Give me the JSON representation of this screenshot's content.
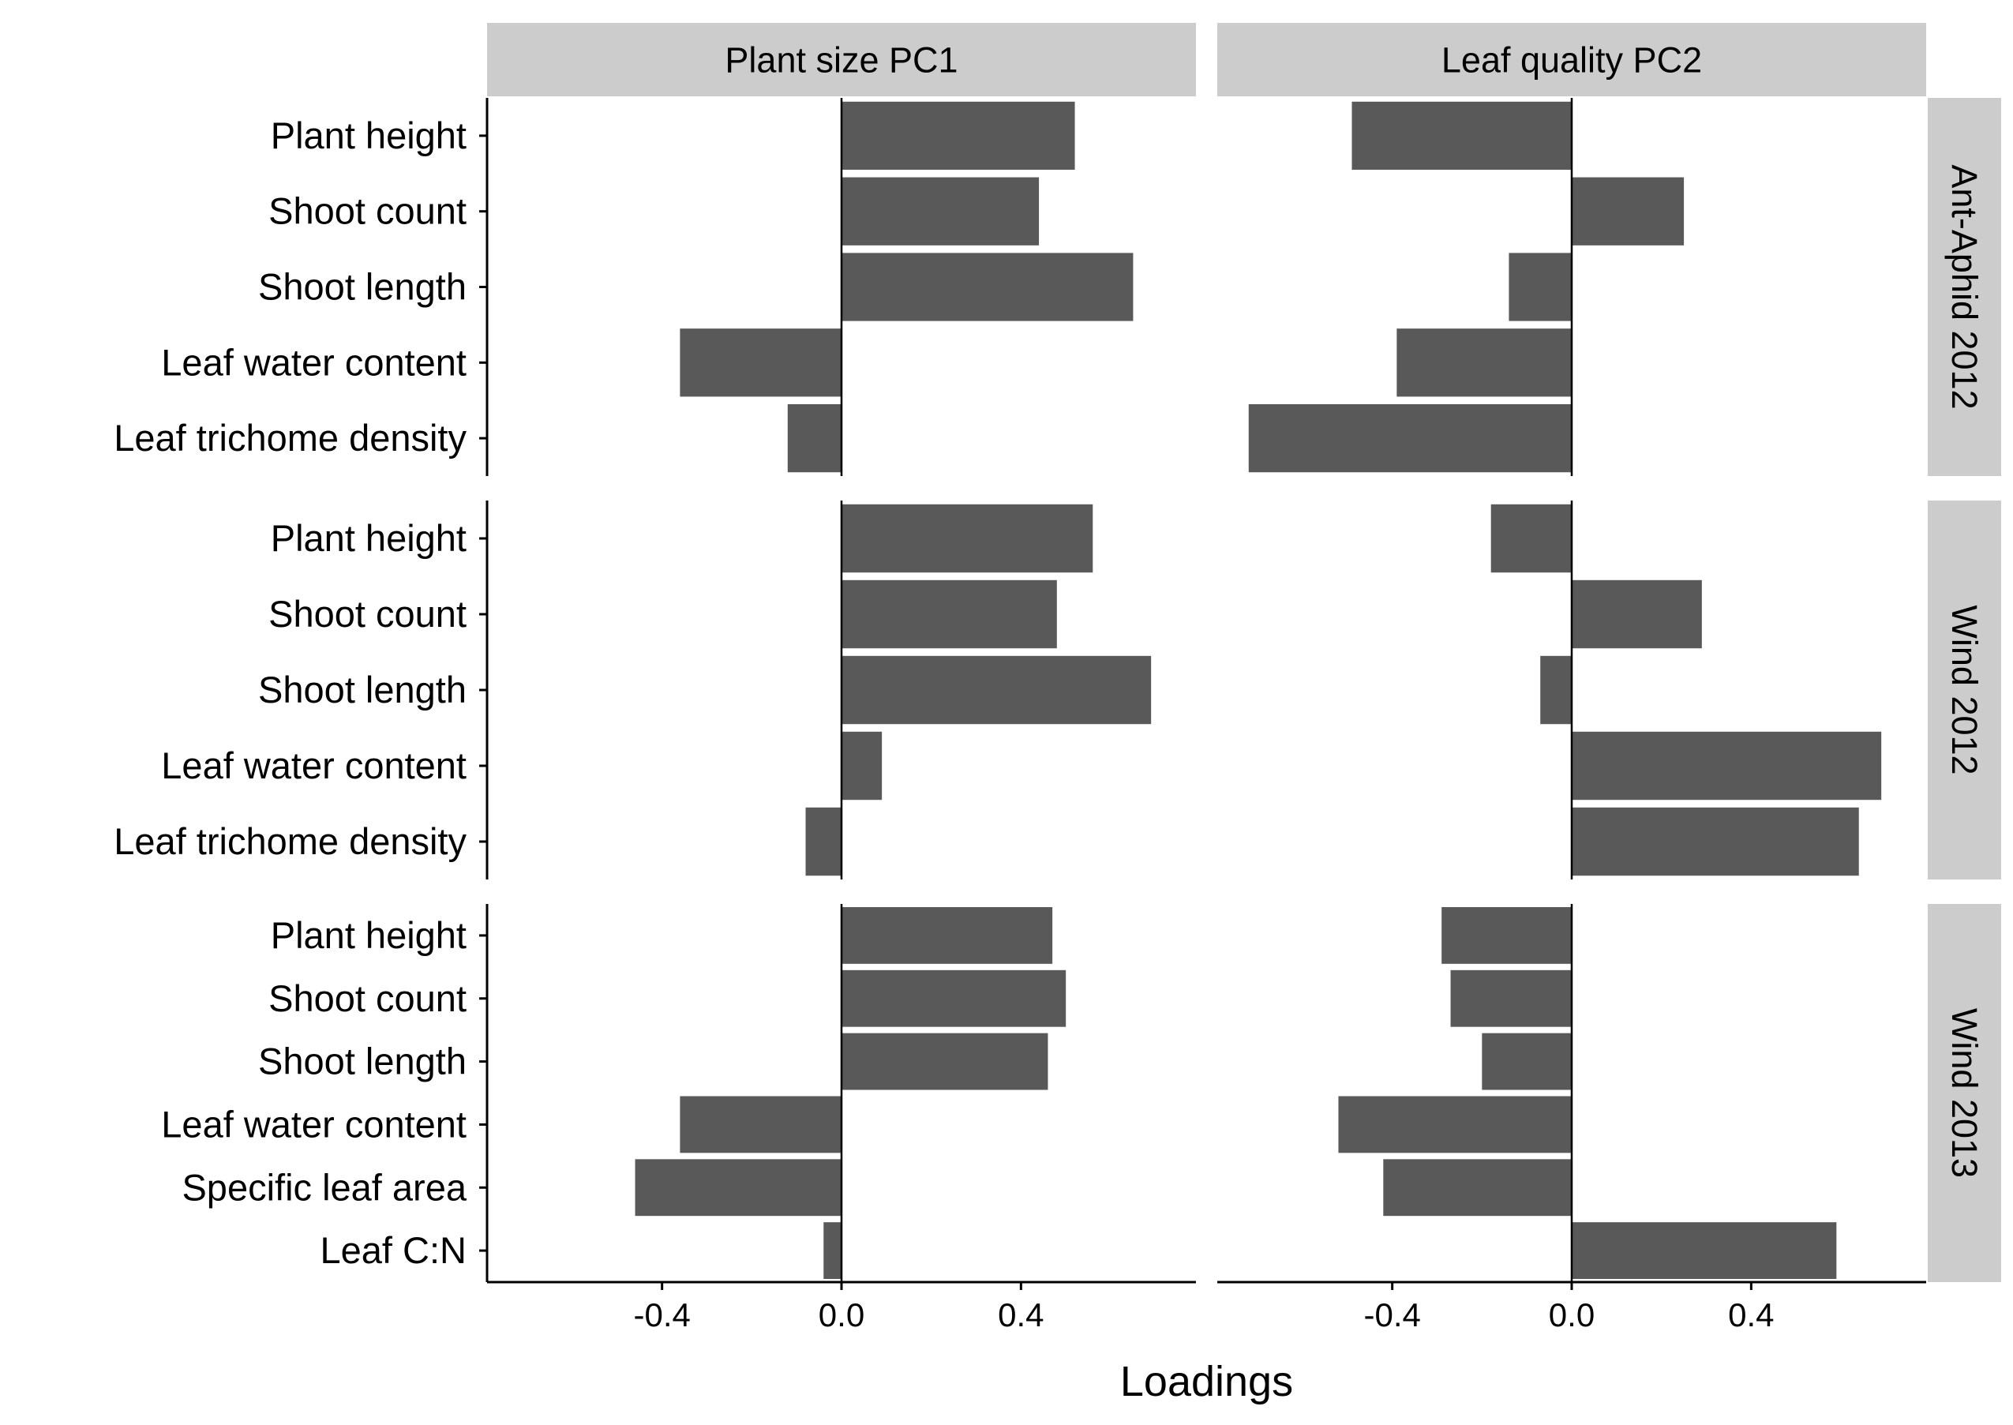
{
  "chart_data": {
    "type": "bar",
    "orientation": "horizontal",
    "layout": "facet-grid",
    "xlabel": "Loadings",
    "xlim": [
      -0.79,
      0.79
    ],
    "x_ticks": [
      -0.4,
      0.0,
      0.4
    ],
    "x_tick_labels": [
      "-0.4",
      "0.0",
      "0.4"
    ],
    "grid": false,
    "legend": "none",
    "bar_color": "#595959",
    "strip_color": "#cccccc",
    "columns": [
      "Plant size PC1",
      "Leaf quality PC2"
    ],
    "rows": [
      {
        "name": "Ant-Aphid 2012",
        "categories": [
          "Plant height",
          "Shoot count",
          "Shoot length",
          "Leaf water content",
          "Leaf trichome density"
        ],
        "values": [
          [
            0.52,
            0.44,
            0.65,
            -0.36,
            -0.12
          ],
          [
            -0.49,
            0.25,
            -0.14,
            -0.39,
            -0.72
          ]
        ]
      },
      {
        "name": "Wind 2012",
        "categories": [
          "Plant height",
          "Shoot count",
          "Shoot length",
          "Leaf water content",
          "Leaf trichome density"
        ],
        "values": [
          [
            0.56,
            0.48,
            0.69,
            0.09,
            -0.08
          ],
          [
            -0.18,
            0.29,
            -0.07,
            0.69,
            0.64
          ]
        ]
      },
      {
        "name": "Wind 2013",
        "categories": [
          "Plant height",
          "Shoot count",
          "Shoot length",
          "Leaf water content",
          "Specific leaf area",
          "Leaf C:N"
        ],
        "values": [
          [
            0.47,
            0.5,
            0.46,
            -0.36,
            -0.46,
            -0.04
          ],
          [
            -0.29,
            -0.27,
            -0.2,
            -0.52,
            -0.42,
            0.59
          ]
        ]
      }
    ]
  }
}
